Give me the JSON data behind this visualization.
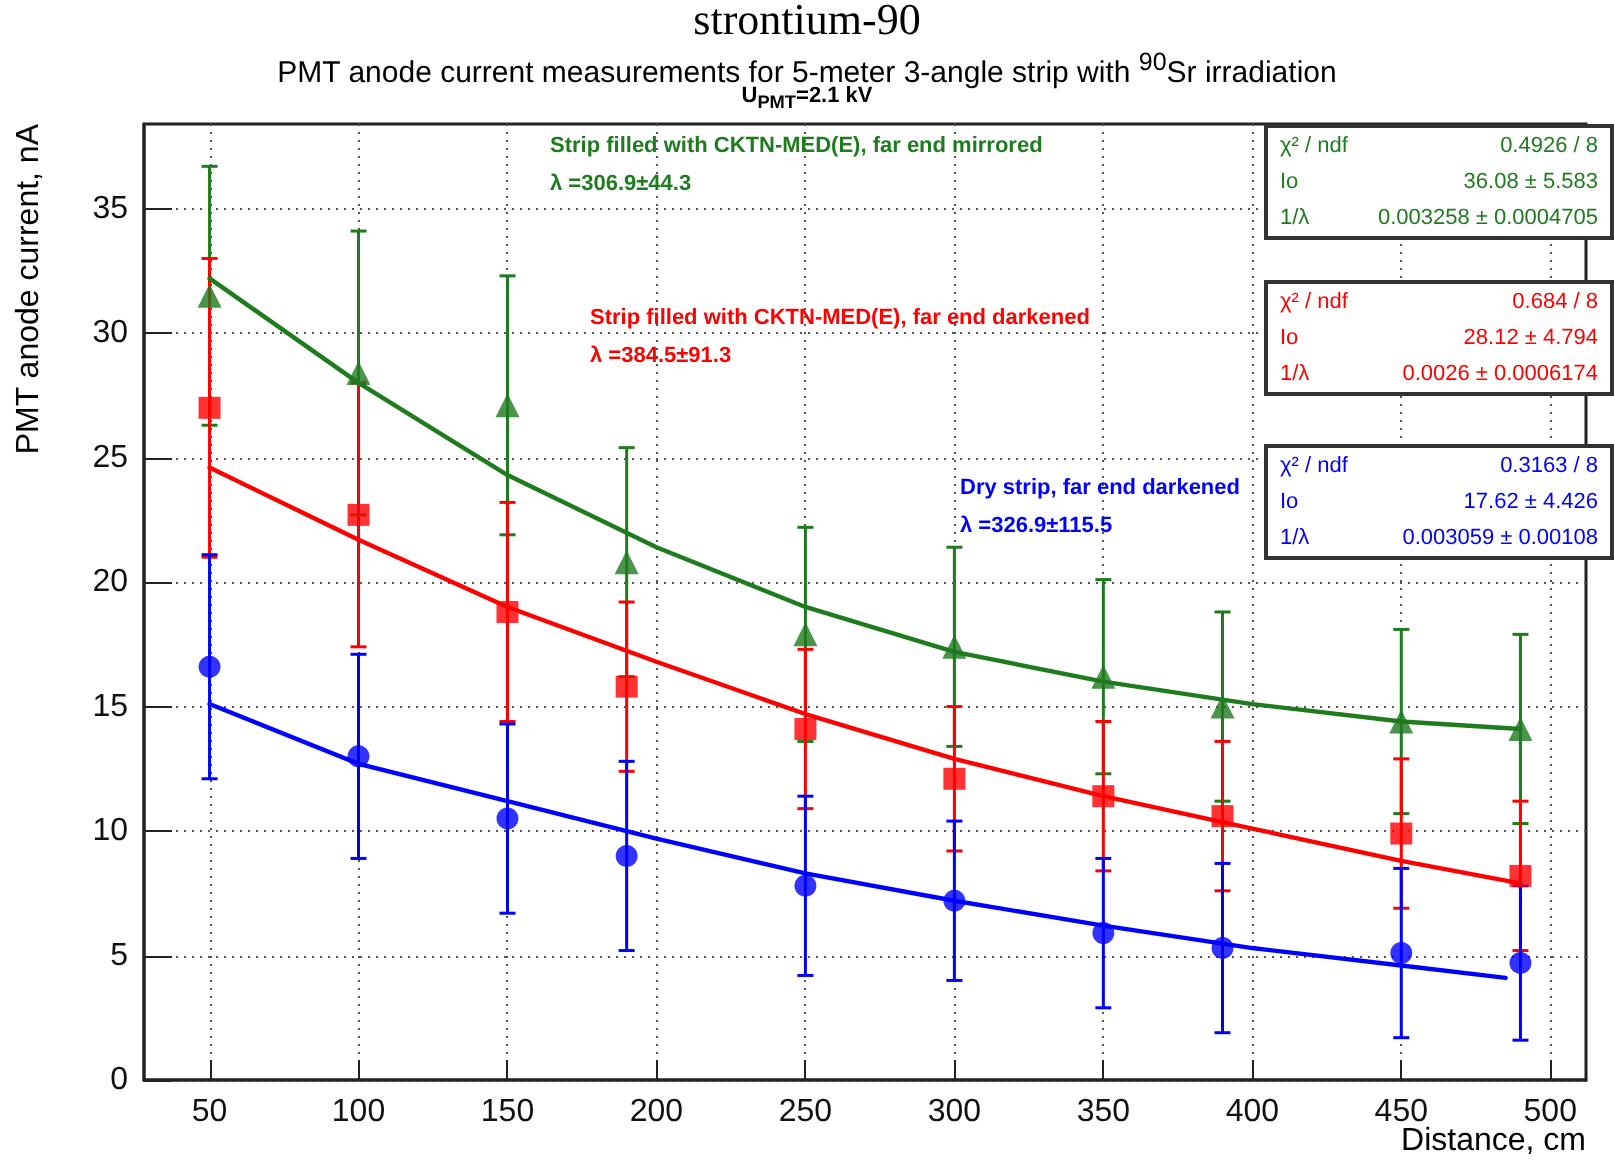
{
  "chart_data": {
    "type": "scatter",
    "title": "PMT anode current measurements for 5-meter 3-angle strip with $^{90}$Sr irradiation",
    "subtitle": "U$_{PMT}$=2.1 kV",
    "xlabel": "Distance, cm",
    "ylabel": "PMT anode current, nA",
    "x": [
      50,
      100,
      150,
      190,
      250,
      300,
      350,
      390,
      450,
      490
    ],
    "series": [
      {
        "name": "Strip filled with CKTN-MED(E), far end mirrored",
        "color": "#1e7b1e",
        "marker": "triangle",
        "values": [
          31.5,
          28.4,
          27.1,
          20.8,
          17.9,
          17.4,
          16.2,
          15.0,
          14.4,
          14.1
        ],
        "errors": [
          5.2,
          5.7,
          5.2,
          4.6,
          4.3,
          4.0,
          3.9,
          3.8,
          3.7,
          3.8
        ]
      },
      {
        "name": "Strip filled with CKTN-MED(E), far end darkened",
        "color": "#ff0000",
        "marker": "square",
        "values": [
          27.0,
          22.7,
          18.8,
          15.8,
          14.1,
          12.1,
          11.4,
          10.6,
          9.9,
          8.2
        ],
        "errors": [
          6.0,
          5.3,
          4.4,
          3.4,
          3.2,
          2.9,
          3.0,
          3.0,
          3.0,
          3.0
        ]
      },
      {
        "name": "Dry strip, far end darkened",
        "color": "#0000ff",
        "marker": "circle",
        "values": [
          16.6,
          13.0,
          10.5,
          9.0,
          7.8,
          7.2,
          5.9,
          5.3,
          5.1,
          4.7
        ],
        "errors": [
          4.5,
          4.1,
          3.8,
          3.8,
          3.6,
          3.2,
          3.0,
          3.4,
          3.4,
          3.1
        ]
      },
      {
        "type": "line",
        "color": "#1e7b1e",
        "marker": "none",
        "x": [
          50,
          100,
          150,
          200,
          250,
          300,
          350,
          400,
          450,
          490
        ],
        "values": [
          32.2,
          28.0,
          24.3,
          21.4,
          19.0,
          17.2,
          16.0,
          15.1,
          14.4,
          14.1
        ]
      },
      {
        "type": "line",
        "color": "#ff0000",
        "marker": "none",
        "x": [
          50,
          100,
          150,
          200,
          250,
          300,
          350,
          400,
          450,
          490
        ],
        "values": [
          24.6,
          21.7,
          19.0,
          16.8,
          14.7,
          12.9,
          11.4,
          10.1,
          8.8,
          7.9
        ]
      },
      {
        "type": "line",
        "color": "#0000ff",
        "marker": "none",
        "x": [
          50,
          100,
          150,
          200,
          250,
          300,
          350,
          400,
          450,
          485
        ],
        "values": [
          15.1,
          12.7,
          11.2,
          9.7,
          8.3,
          7.2,
          6.2,
          5.3,
          4.6,
          4.1
        ]
      }
    ],
    "annotations": [
      "λ =306.9±44.3",
      "λ =384.5±91.3",
      "λ =326.9±115.5",
      "χ² / ndf",
      "0.4926 / 8",
      "Io",
      "36.08 ± 5.583",
      "1/λ",
      "0.003258 ± 0.0004705",
      "χ² / ndf",
      "0.684 / 8",
      "Io",
      "28.12 ± 4.794",
      "1/λ",
      "0.0026 ± 0.0006174",
      "χ² / ndf",
      "0.3163 / 8",
      "Io",
      "17.62 ± 4.426",
      "1/λ",
      "0.003059 ± 0.00108",
      "strontium-90"
    ],
    "xlim": [
      28,
      512
    ],
    "xticks": [
      50,
      100,
      150,
      200,
      250,
      300,
      350,
      400,
      450,
      500
    ],
    "ylim": [
      0,
      38.4
    ],
    "yticks": [
      0,
      5,
      10,
      15,
      20,
      25,
      30,
      35
    ],
    "grid": true,
    "legend": false,
    "line_style": "solid"
  }
}
